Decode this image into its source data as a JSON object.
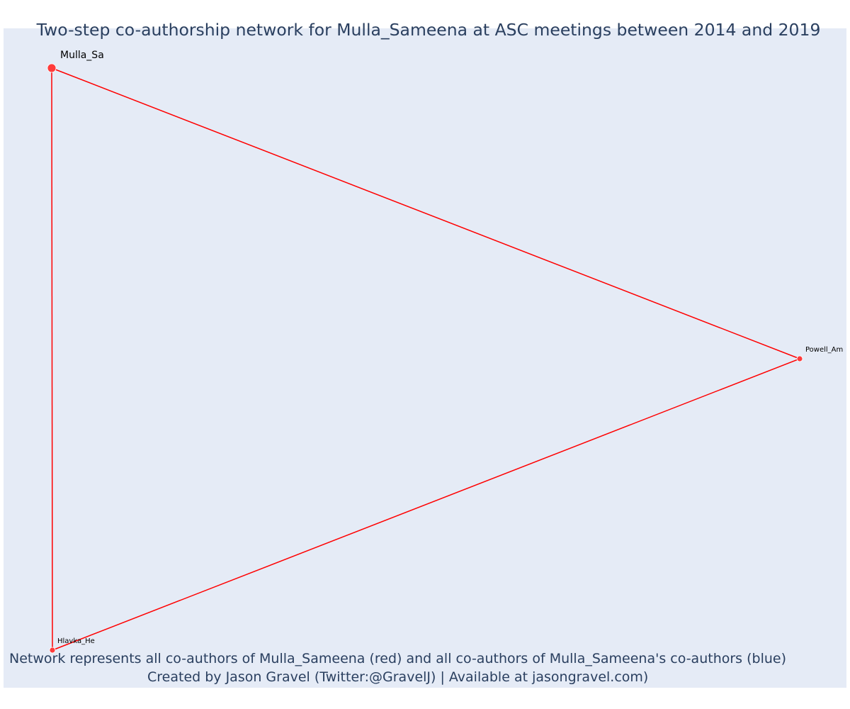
{
  "title": "Two-step co-authorship network for Mulla_Sameena at ASC meetings between 2014 and 2019",
  "caption": {
    "line1": "Network represents all co-authors of Mulla_Sameena (red) and all co-authors of Mulla_Sameena's co-authors (blue)",
    "line2": "Created by Jason Gravel (Twitter:@GravelJ) | Available at jasongravel.com)"
  },
  "colors": {
    "background": "#e5ebf6",
    "edge": "#ff0000",
    "node": "#ff3b3b",
    "text": "#2a3f5f"
  },
  "nodes": [
    {
      "id": "mulla",
      "label": "Mulla_Sa",
      "role": "focal"
    },
    {
      "id": "powell",
      "label": "Powell_Am",
      "role": "co-author"
    },
    {
      "id": "hlavka",
      "label": "Hlavka_He",
      "role": "co-author"
    }
  ],
  "edges": [
    {
      "source": "mulla",
      "target": "powell"
    },
    {
      "source": "mulla",
      "target": "hlavka"
    },
    {
      "source": "powell",
      "target": "hlavka"
    }
  ]
}
